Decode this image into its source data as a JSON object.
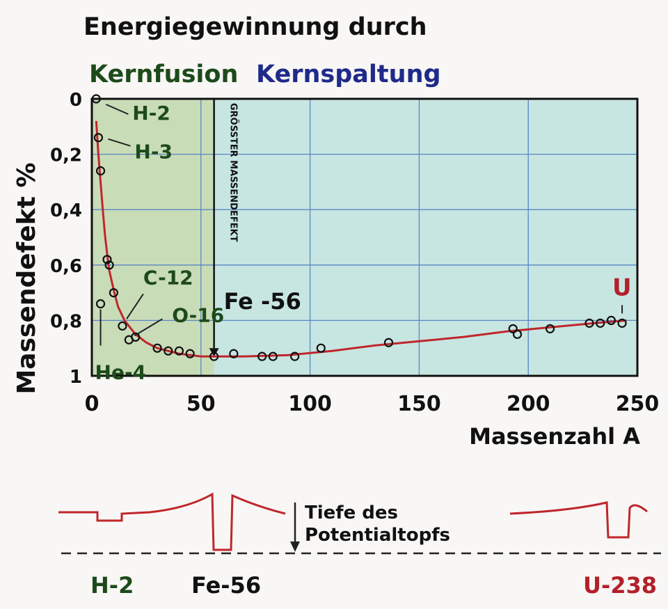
{
  "chart_data": {
    "type": "scatter",
    "title": "Energiegewinnung durch",
    "subtitle_fusion": "Kernfusion",
    "subtitle_fission": "Kernspaltung",
    "xlabel": "Massenzahl A",
    "ylabel": "Massendefekt %",
    "xlim": [
      0,
      250
    ],
    "ylim": [
      0,
      1
    ],
    "y_inverted": true,
    "x_ticks": [
      0,
      50,
      100,
      150,
      200,
      250
    ],
    "x_tick_labels": [
      "0",
      "50",
      "100",
      "150",
      "200",
      "250"
    ],
    "y_ticks": [
      0,
      0.2,
      0.4,
      0.6,
      0.8,
      1
    ],
    "y_tick_labels": [
      "0",
      "0,2",
      "0,4",
      "0,6",
      "0,8",
      "1"
    ],
    "grid": true,
    "fusion_region_x": [
      0,
      56
    ],
    "marker_line": {
      "x": 56,
      "label": "GRÖSSTER MASSENDEFEKT"
    },
    "points": [
      {
        "x": 2,
        "y": 0.0
      },
      {
        "x": 3,
        "y": 0.14
      },
      {
        "x": 4,
        "y": 0.74
      },
      {
        "x": 4,
        "y": 0.26
      },
      {
        "x": 7,
        "y": 0.58
      },
      {
        "x": 8,
        "y": 0.6
      },
      {
        "x": 10,
        "y": 0.7
      },
      {
        "x": 14,
        "y": 0.82
      },
      {
        "x": 17,
        "y": 0.87
      },
      {
        "x": 20,
        "y": 0.86
      },
      {
        "x": 30,
        "y": 0.9
      },
      {
        "x": 35,
        "y": 0.91
      },
      {
        "x": 40,
        "y": 0.91
      },
      {
        "x": 45,
        "y": 0.92
      },
      {
        "x": 56,
        "y": 0.93
      },
      {
        "x": 65,
        "y": 0.92
      },
      {
        "x": 78,
        "y": 0.93
      },
      {
        "x": 83,
        "y": 0.93
      },
      {
        "x": 93,
        "y": 0.93
      },
      {
        "x": 105,
        "y": 0.9
      },
      {
        "x": 136,
        "y": 0.88
      },
      {
        "x": 193,
        "y": 0.83
      },
      {
        "x": 195,
        "y": 0.85
      },
      {
        "x": 210,
        "y": 0.83
      },
      {
        "x": 228,
        "y": 0.81
      },
      {
        "x": 233,
        "y": 0.81
      },
      {
        "x": 238,
        "y": 0.8
      },
      {
        "x": 243,
        "y": 0.81
      }
    ],
    "curve": [
      [
        2,
        0.08
      ],
      [
        3,
        0.2
      ],
      [
        4,
        0.3
      ],
      [
        5,
        0.4
      ],
      [
        6,
        0.49
      ],
      [
        7,
        0.56
      ],
      [
        8,
        0.62
      ],
      [
        10,
        0.69
      ],
      [
        12,
        0.75
      ],
      [
        15,
        0.8
      ],
      [
        20,
        0.85
      ],
      [
        25,
        0.88
      ],
      [
        30,
        0.9
      ],
      [
        40,
        0.92
      ],
      [
        50,
        0.93
      ],
      [
        56,
        0.93
      ],
      [
        70,
        0.93
      ],
      [
        90,
        0.925
      ],
      [
        110,
        0.91
      ],
      [
        130,
        0.89
      ],
      [
        150,
        0.875
      ],
      [
        170,
        0.86
      ],
      [
        190,
        0.84
      ],
      [
        210,
        0.825
      ],
      [
        230,
        0.81
      ],
      [
        245,
        0.8
      ]
    ],
    "annotations": [
      {
        "text": "H-2",
        "x": 2,
        "y": 0.0
      },
      {
        "text": "H-3",
        "x": 3,
        "y": 0.14
      },
      {
        "text": "He-4",
        "x": 4,
        "y": 0.74
      },
      {
        "text": "C-12",
        "x": 14,
        "y": 0.82
      },
      {
        "text": "O-16",
        "x": 17,
        "y": 0.87
      },
      {
        "text": "Fe -56",
        "x": 56,
        "y": 0.93
      },
      {
        "text": "U",
        "x": 243,
        "y": 0.81
      }
    ]
  },
  "potential": {
    "depth_label_1": "Tiefe des",
    "depth_label_2": "Potentialtopfs",
    "labels": [
      "H-2",
      "Fe-56",
      "U-238"
    ]
  },
  "colors": {
    "fusion_text": "#1d4a1a",
    "fission_text": "#1f2a8a",
    "curve": "#c0262c",
    "u_label": "#b3202a",
    "fusion_bg": "#c9dcb8",
    "fission_bg": "#c7e6e2",
    "grid": "#5a86c4",
    "text": "#111111"
  }
}
